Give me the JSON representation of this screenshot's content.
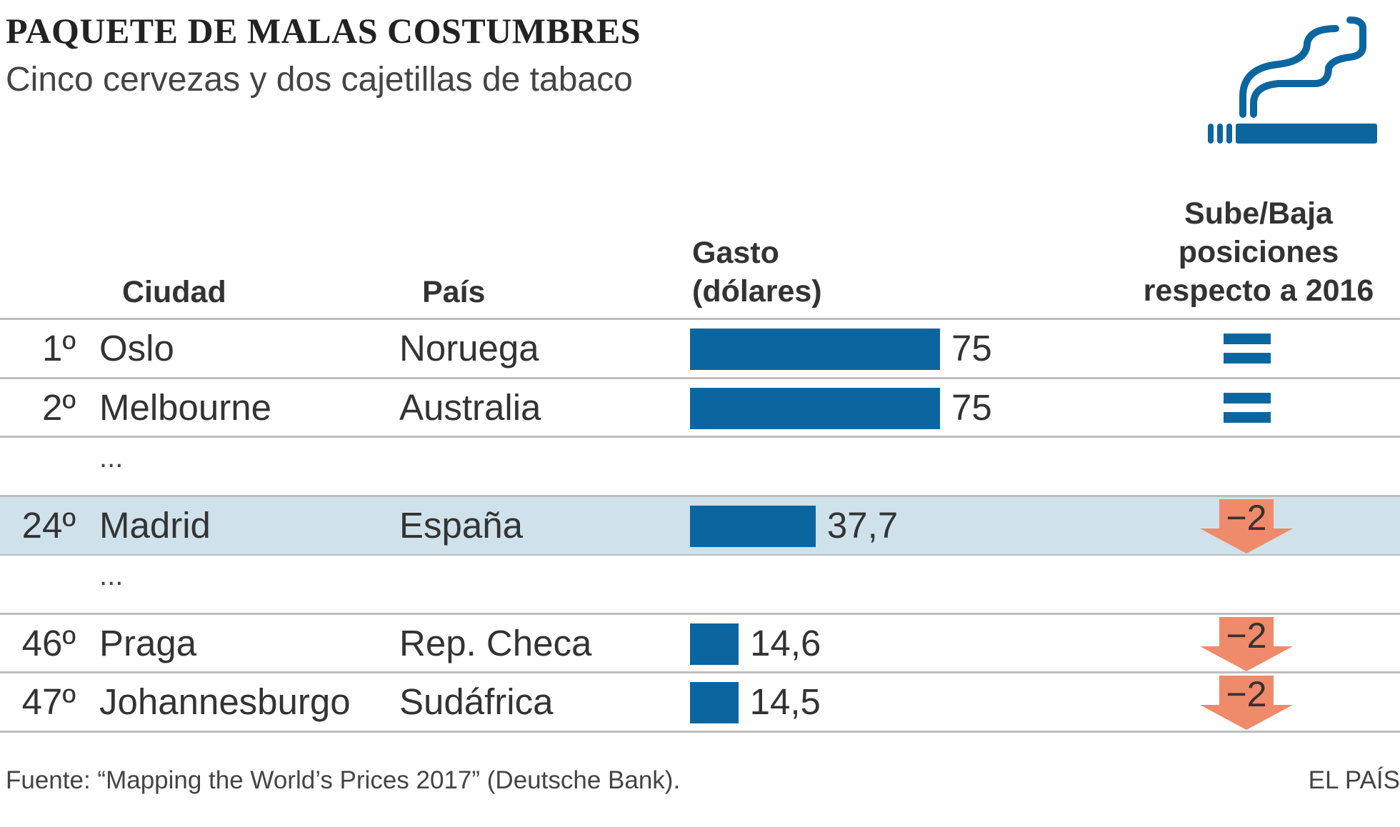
{
  "title": "PAQUETE DE MALAS COSTUMBRES",
  "subtitle": "Cinco cervezas y dos cajetillas de tabaco",
  "icon": "cigarette-smoke-icon",
  "headers": {
    "ciudad": "Ciudad",
    "pais": "País",
    "gasto_1": "Gasto",
    "gasto_2": "(dólares)",
    "cambio_1": "Sube/Baja",
    "cambio_2": "posiciones",
    "cambio_3": "respecto a 2016"
  },
  "ellipsis": "...",
  "colors": {
    "bar": "#0b66a0",
    "down": "#ef8a6a",
    "highlight": "#cfe1ea"
  },
  "chart_data": {
    "type": "table",
    "title": "PAQUETE DE MALAS COSTUMBRES",
    "subtitle": "Cinco cervezas y dos cajetillas de tabaco",
    "columns": [
      "Ciudad",
      "País",
      "Gasto (dólares)",
      "Sube/Baja posiciones respecto a 2016"
    ],
    "rows": [
      {
        "rank": "1º",
        "city": "Oslo",
        "country": "Noruega",
        "value": 75,
        "value_label": "75",
        "change": "=",
        "highlight": false
      },
      {
        "rank": "2º",
        "city": "Melbourne",
        "country": "Australia",
        "value": 75,
        "value_label": "75",
        "change": "=",
        "highlight": false
      },
      {
        "rank": "24º",
        "city": "Madrid",
        "country": "España",
        "value": 37.7,
        "value_label": "37,7",
        "change": "−2",
        "highlight": true
      },
      {
        "rank": "46º",
        "city": "Praga",
        "country": "Rep. Checa",
        "value": 14.6,
        "value_label": "14,6",
        "change": "−2",
        "highlight": false
      },
      {
        "rank": "47º",
        "city": "Johannesburgo",
        "country": "Sudáfrica",
        "value": 14.5,
        "value_label": "14,5",
        "change": "−2",
        "highlight": false
      }
    ],
    "max_value": 75
  },
  "footer": {
    "source": "Fuente: “Mapping the World’s Prices 2017” (Deutsche Bank).",
    "brand": "EL PAÍS"
  }
}
